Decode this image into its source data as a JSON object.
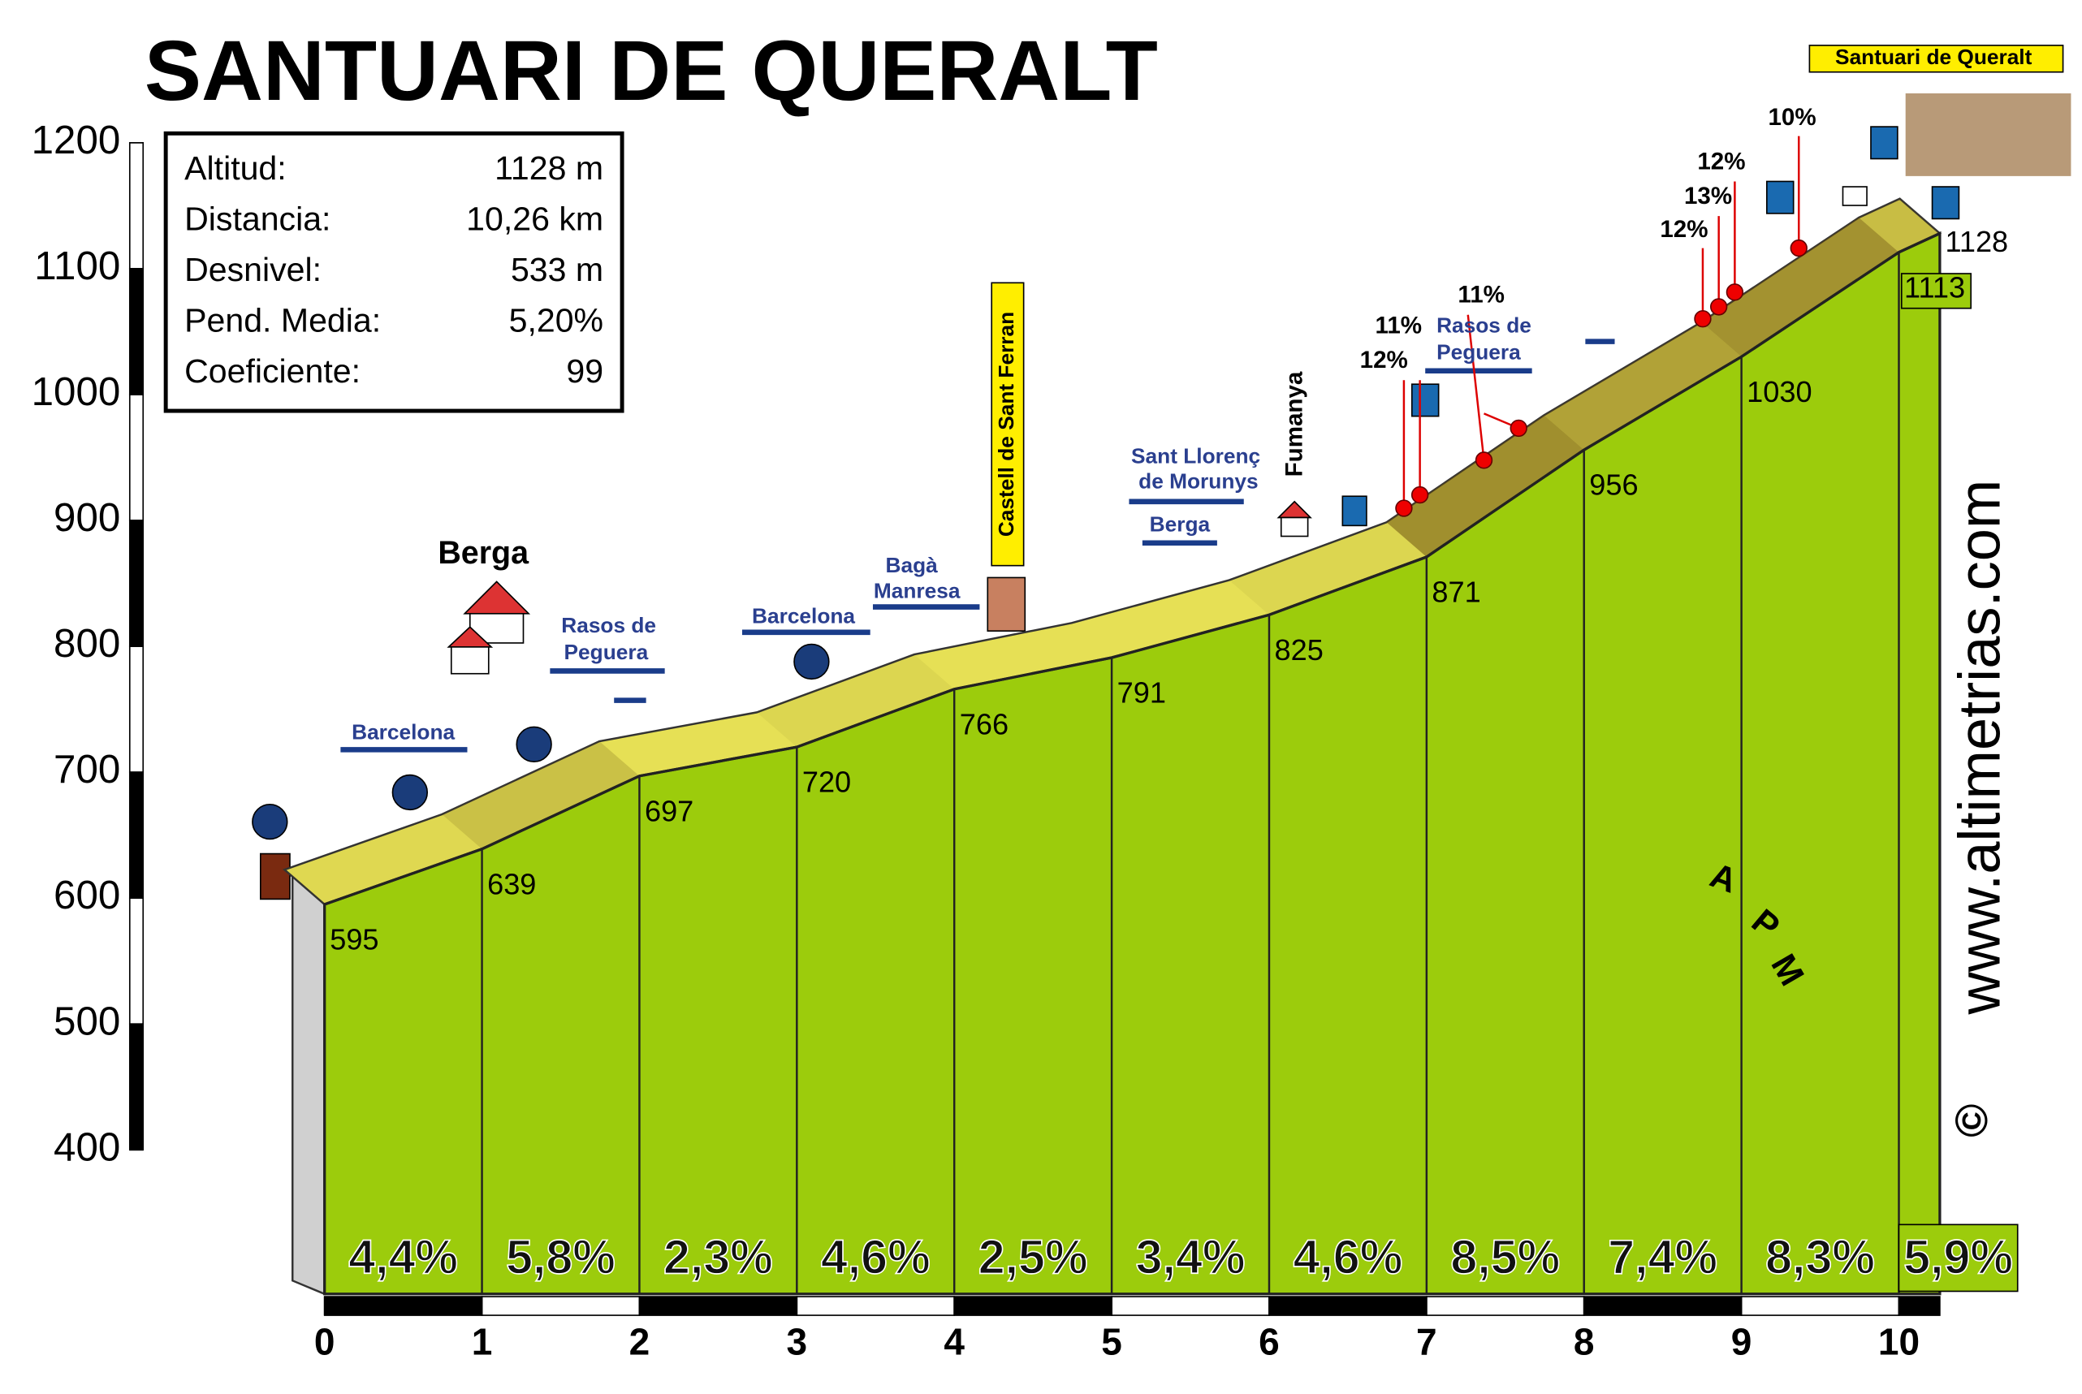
{
  "chart_data": {
    "type": "elevation-profile",
    "title": "SANTUARI DE QUERALT",
    "stats": [
      {
        "label": "Altitud:",
        "value": "1128 m"
      },
      {
        "label": "Distancia:",
        "value": "10,26 km"
      },
      {
        "label": "Desnivel:",
        "value": "533 m"
      },
      {
        "label": "Pend. Media:",
        "value": "5,20%"
      },
      {
        "label": "Coeficiente:",
        "value": "99"
      }
    ],
    "x": [
      0,
      1,
      2,
      3,
      4,
      5,
      6,
      7,
      8,
      9,
      10,
      10.26
    ],
    "values": [
      595,
      639,
      697,
      720,
      766,
      791,
      825,
      871,
      956,
      1030,
      1113,
      1128
    ],
    "gradients": [
      4.4,
      5.8,
      2.3,
      4.6,
      2.5,
      3.4,
      4.6,
      8.5,
      7.4,
      8.3,
      5.9
    ],
    "gradient_labels": [
      "4,4%",
      "5,8%",
      "2,3%",
      "4,6%",
      "2,5%",
      "3,4%",
      "4,6%",
      "8,5%",
      "7,4%",
      "8,3%",
      "5,9%"
    ],
    "xlim": [
      0,
      10
    ],
    "xticks": [
      0,
      1,
      2,
      3,
      4,
      5,
      6,
      7,
      8,
      9,
      10
    ],
    "ylim": [
      400,
      1200
    ],
    "yticks": [
      400,
      500,
      600,
      700,
      800,
      900,
      1000,
      1100,
      1200
    ],
    "fill_color": "#9ccc0c",
    "road_color": "#e6e055",
    "annotations": [
      "Berga",
      "Barcelona",
      "Rasos de",
      "Peguera",
      "Barcelona",
      "Bagà",
      "Manresa",
      "Castell de Sant Ferran",
      "Sant Llorenç",
      "de Morunys",
      "Berga",
      "Fumanya",
      "Rasos de",
      "Peguera",
      "11%",
      "11%",
      "12%",
      "12%",
      "13%",
      "12%",
      "10%",
      "Santuari de Queralt",
      "www.altimetrias.com",
      "©",
      "A",
      "P",
      "M"
    ]
  }
}
